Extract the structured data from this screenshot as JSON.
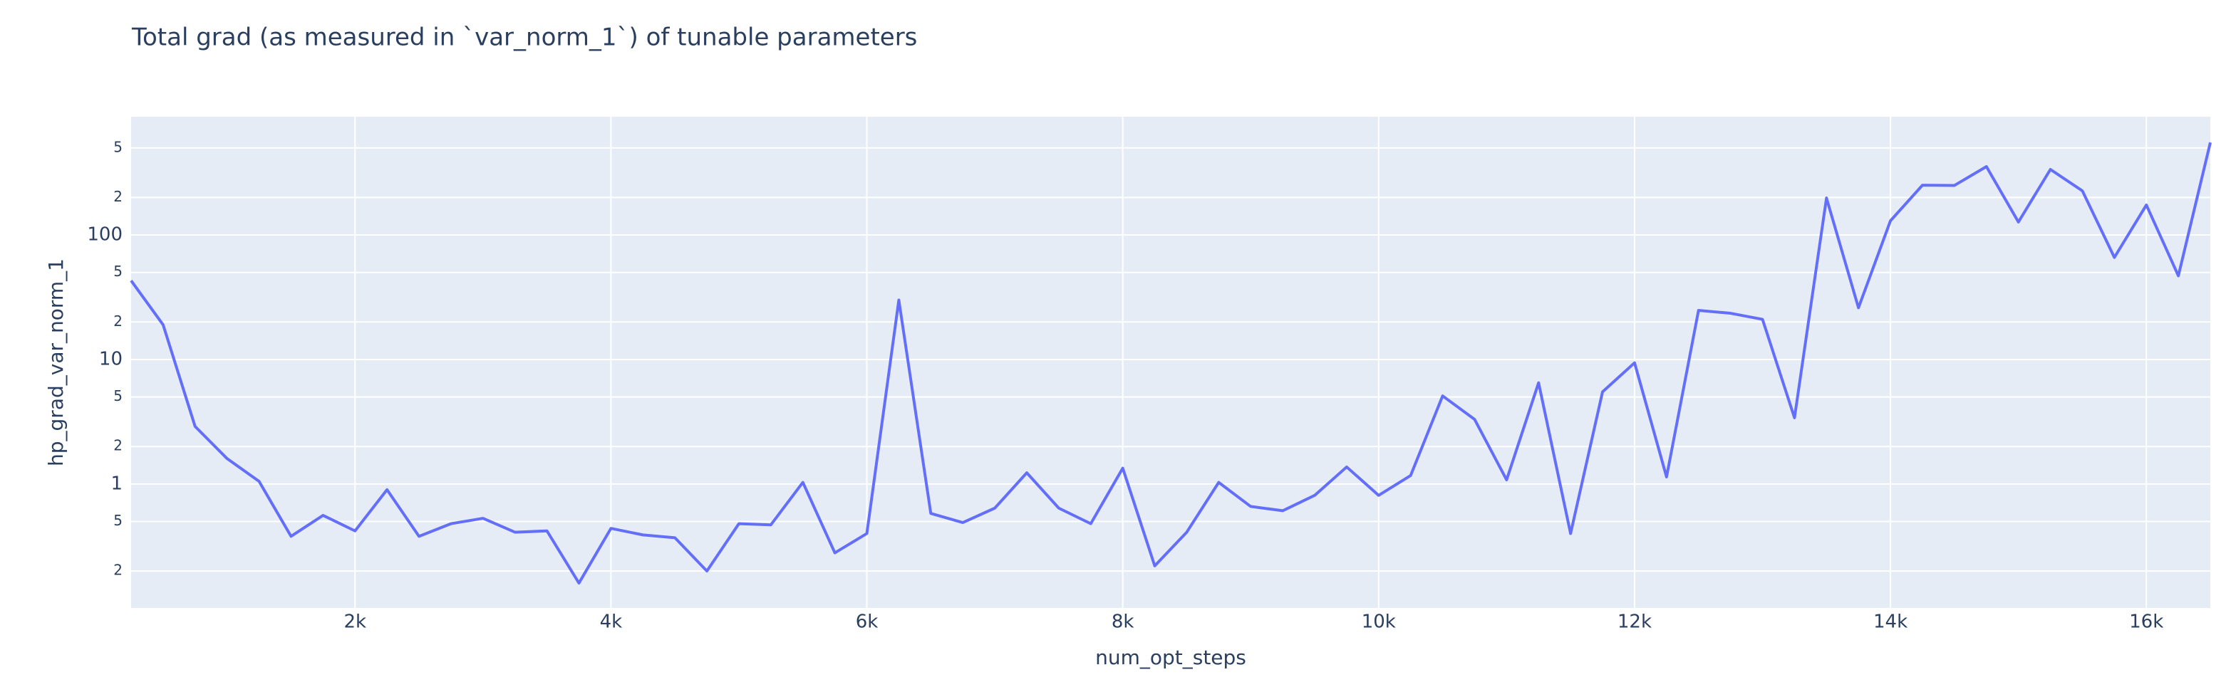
{
  "chart_data": {
    "type": "line",
    "title": "Total grad (as measured in `var_norm_1`) of tunable parameters",
    "x_label": "num_opt_steps",
    "y_label": "hp_grad_var_norm_1",
    "log_y": true,
    "grid": true,
    "x": [
      250,
      500,
      750,
      1000,
      1250,
      1500,
      1750,
      2000,
      2250,
      2500,
      2750,
      3000,
      3250,
      3500,
      3750,
      4000,
      4250,
      4500,
      4750,
      5000,
      5250,
      5500,
      5750,
      6000,
      6250,
      6500,
      6750,
      7000,
      7250,
      7500,
      7750,
      8000,
      8250,
      8500,
      8750,
      9000,
      9250,
      9500,
      9750,
      10000,
      10250,
      10500,
      10750,
      11000,
      11250,
      11500,
      11750,
      12000,
      12250,
      12500,
      12750,
      13000,
      13250,
      13500,
      13750,
      14000,
      14250,
      14500,
      14750,
      15000,
      15250,
      15500,
      15750,
      16000,
      16250,
      16500
    ],
    "series": [
      {
        "name": "hp_grad_var_norm_1",
        "color": "#636efa",
        "values": [
          43,
          19,
          2.9,
          1.6,
          1.05,
          0.38,
          0.56,
          0.42,
          0.9,
          0.38,
          0.48,
          0.53,
          0.41,
          0.42,
          0.16,
          0.44,
          0.39,
          0.37,
          0.2,
          0.48,
          0.47,
          1.03,
          0.28,
          0.4,
          30,
          0.58,
          0.49,
          0.64,
          1.23,
          0.64,
          0.48,
          1.34,
          0.22,
          0.41,
          1.03,
          0.66,
          0.61,
          0.81,
          1.37,
          0.81,
          1.17,
          5.1,
          3.3,
          1.08,
          6.5,
          0.4,
          5.5,
          9.4,
          1.14,
          24.8,
          23.5,
          21,
          3.4,
          198,
          26,
          130,
          251,
          250,
          354,
          127,
          336,
          226,
          66,
          174,
          47,
          553
        ]
      }
    ],
    "xlim": [
      250,
      16500
    ],
    "ylim": [
      0.101,
      890
    ],
    "xticks": [
      {
        "value": 2000,
        "label": "2k"
      },
      {
        "value": 4000,
        "label": "4k"
      },
      {
        "value": 6000,
        "label": "6k"
      },
      {
        "value": 8000,
        "label": "8k"
      },
      {
        "value": 10000,
        "label": "10k"
      },
      {
        "value": 12000,
        "label": "12k"
      },
      {
        "value": 14000,
        "label": "14k"
      },
      {
        "value": 16000,
        "label": "16k"
      }
    ],
    "yticks": [
      {
        "value": 0.2,
        "label": "2"
      },
      {
        "value": 0.5,
        "label": "5"
      },
      1,
      {
        "value": 2,
        "label": "2"
      },
      {
        "value": 5,
        "label": "5"
      },
      10,
      {
        "value": 20,
        "label": "2"
      },
      {
        "value": 50,
        "label": "5"
      },
      100,
      {
        "value": 200,
        "label": "2"
      },
      {
        "value": 500,
        "label": "5"
      }
    ]
  }
}
